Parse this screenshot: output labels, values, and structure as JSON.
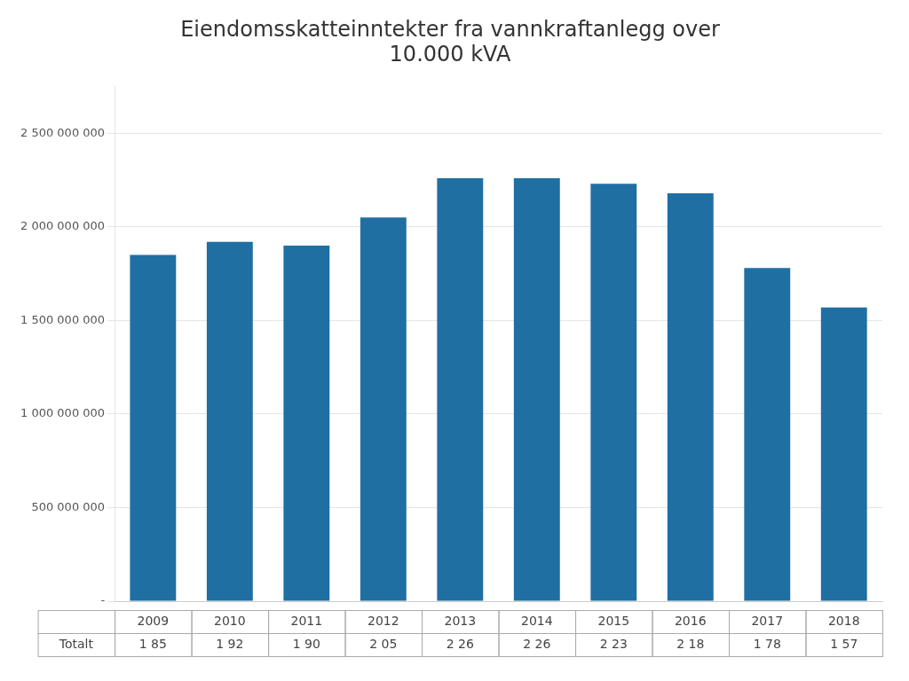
{
  "chart_data": {
    "type": "bar",
    "title": [
      "Eiendomsskatteinntekter fra vannkraftanlegg over",
      "10.000 kVA"
    ],
    "categories": [
      "2009",
      "2010",
      "2011",
      "2012",
      "2013",
      "2014",
      "2015",
      "2016",
      "2017",
      "2018"
    ],
    "values": [
      1850000000,
      1920000000,
      1900000000,
      2050000000,
      2260000000,
      2260000000,
      2230000000,
      2180000000,
      1780000000,
      1570000000
    ],
    "value_labels": [
      "1 85",
      "1 92",
      "1 90",
      "2 05",
      "2 26",
      "2 26",
      "2 23",
      "2 18",
      "1 78",
      "1 57"
    ],
    "data_labels": true,
    "annotations": [
      "Totalt"
    ],
    "color": "#1f6fa3",
    "ylim": [
      0,
      2750000000
    ],
    "yticks": [
      {
        "value": 0,
        "label": "-"
      },
      {
        "value": 500000000,
        "label": "500 000 000"
      },
      {
        "value": 1000000000,
        "label": "1 000 000 000"
      },
      {
        "value": 1500000000,
        "label": "1 500 000 000"
      },
      {
        "value": 2000000000,
        "label": "2 000 000 000"
      },
      {
        "value": 2500000000,
        "label": "2 500 000 000"
      }
    ],
    "grid": true
  }
}
